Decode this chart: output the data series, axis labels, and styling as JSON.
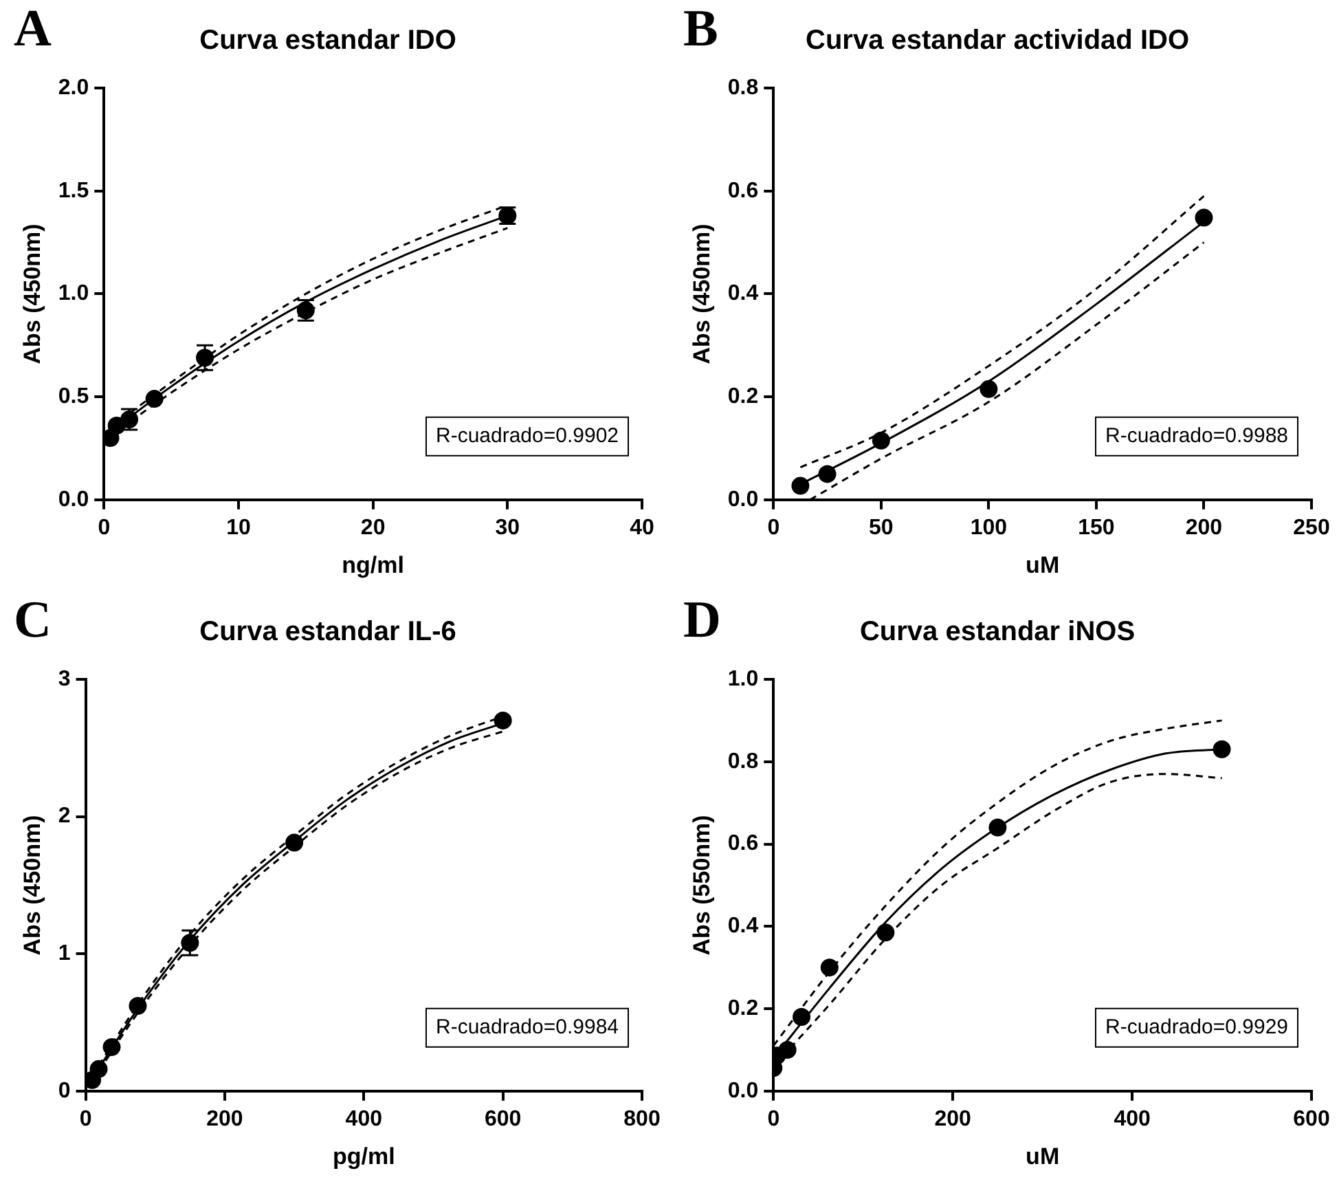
{
  "chart_data": [
    {
      "type": "scatter",
      "title": "Curva estandar IDO",
      "xlabel": "ng/ml",
      "ylabel": "Abs (450nm)",
      "annotations": [
        "A",
        "R-cuadrado=0.9902"
      ],
      "grid": false,
      "legend": false,
      "xlim": [
        0,
        40
      ],
      "xticks": [
        0,
        10,
        20,
        30,
        40
      ],
      "ylim": [
        0,
        2
      ],
      "yticks": [
        {
          "value": 0,
          "label": "0.0"
        },
        {
          "value": 0.5,
          "label": "0.5"
        },
        {
          "value": 1,
          "label": "1.0"
        },
        {
          "value": 1.5,
          "label": "1.5"
        },
        {
          "value": 2,
          "label": "2.0"
        }
      ],
      "series": [
        {
          "type": "scatter",
          "marker": "circle",
          "color": "#000000",
          "x": [
            0.47,
            0.94,
            1.88,
            3.75,
            7.5,
            15,
            30
          ],
          "values": [
            0.3,
            0.36,
            0.39,
            0.49,
            0.69,
            0.92,
            1.38
          ],
          "errors": [
            null,
            null,
            0.05,
            null,
            0.06,
            0.05,
            0.04
          ]
        },
        {
          "type": "line",
          "color": "#000000",
          "line_style": "solid",
          "x": [
            0.47,
            5,
            10,
            15,
            20,
            25,
            30
          ],
          "values": [
            0.33,
            0.55,
            0.77,
            0.96,
            1.12,
            1.26,
            1.38
          ]
        },
        {
          "type": "line",
          "color": "#000000",
          "line_style": "dashed",
          "x": [
            0.47,
            5,
            10,
            15,
            20,
            25,
            30
          ],
          "values": [
            0.35,
            0.57,
            0.8,
            1.0,
            1.17,
            1.31,
            1.43
          ]
        },
        {
          "type": "line",
          "color": "#000000",
          "line_style": "dashed",
          "x": [
            0.47,
            5,
            10,
            15,
            20,
            25,
            30
          ],
          "values": [
            0.31,
            0.52,
            0.73,
            0.91,
            1.07,
            1.2,
            1.32
          ]
        }
      ]
    },
    {
      "type": "scatter",
      "title": "Curva estandar actividad IDO",
      "xlabel": "uM",
      "ylabel": "Abs (450nm)",
      "annotations": [
        "B",
        "R-cuadrado=0.9988"
      ],
      "grid": false,
      "legend": false,
      "xlim": [
        0,
        250
      ],
      "xticks": [
        0,
        50,
        100,
        150,
        200,
        250
      ],
      "ylim": [
        0,
        0.8
      ],
      "yticks": [
        {
          "value": 0,
          "label": "0.0"
        },
        {
          "value": 0.2,
          "label": "0.2"
        },
        {
          "value": 0.4,
          "label": "0.4"
        },
        {
          "value": 0.6,
          "label": "0.6"
        },
        {
          "value": 0.8,
          "label": "0.8"
        }
      ],
      "series": [
        {
          "type": "scatter",
          "marker": "circle",
          "color": "#000000",
          "x": [
            12.5,
            25,
            50,
            100,
            200
          ],
          "values": [
            0.027,
            0.05,
            0.115,
            0.215,
            0.548
          ]
        },
        {
          "type": "line",
          "color": "#000000",
          "line_style": "solid",
          "x": [
            12.5,
            50,
            100,
            150,
            200
          ],
          "values": [
            0.03,
            0.11,
            0.23,
            0.38,
            0.54
          ]
        },
        {
          "type": "line",
          "color": "#000000",
          "line_style": "dashed",
          "x": [
            12.5,
            50,
            100,
            150,
            200
          ],
          "values": [
            0.063,
            0.13,
            0.26,
            0.41,
            0.59
          ]
        },
        {
          "type": "line",
          "color": "#000000",
          "line_style": "dashed",
          "x": [
            17,
            50,
            100,
            150,
            200
          ],
          "values": [
            0.0,
            0.08,
            0.19,
            0.34,
            0.5
          ]
        }
      ]
    },
    {
      "type": "scatter",
      "title": "Curva estandar IL-6",
      "xlabel": "pg/ml",
      "ylabel": "Abs (450nm)",
      "annotations": [
        "C",
        "R-cuadrado=0.9984"
      ],
      "grid": false,
      "legend": false,
      "xlim": [
        0,
        800
      ],
      "xticks": [
        0,
        200,
        400,
        600,
        800
      ],
      "ylim": [
        0,
        3
      ],
      "yticks": [
        0,
        1,
        2,
        3
      ],
      "series": [
        {
          "type": "scatter",
          "marker": "circle",
          "color": "#000000",
          "x": [
            9.4,
            18.75,
            37.5,
            75,
            150,
            300,
            600
          ],
          "values": [
            0.08,
            0.16,
            0.32,
            0.62,
            1.08,
            1.81,
            2.7
          ],
          "errors": [
            null,
            null,
            null,
            null,
            0.09,
            null,
            null
          ]
        },
        {
          "type": "line",
          "color": "#000000",
          "line_style": "solid",
          "x": [
            9.4,
            75,
            150,
            225,
            300,
            375,
            450,
            525,
            600
          ],
          "values": [
            0.09,
            0.6,
            1.1,
            1.5,
            1.82,
            2.12,
            2.36,
            2.55,
            2.68
          ]
        },
        {
          "type": "line",
          "color": "#000000",
          "line_style": "dashed",
          "x": [
            9.4,
            75,
            150,
            225,
            300,
            375,
            450,
            525,
            600
          ],
          "values": [
            0.11,
            0.63,
            1.14,
            1.54,
            1.86,
            2.16,
            2.4,
            2.59,
            2.73
          ]
        },
        {
          "type": "line",
          "color": "#000000",
          "line_style": "dashed",
          "x": [
            9.4,
            75,
            150,
            225,
            300,
            375,
            450,
            525,
            600
          ],
          "values": [
            0.07,
            0.57,
            1.06,
            1.46,
            1.78,
            2.08,
            2.32,
            2.5,
            2.62
          ]
        }
      ]
    },
    {
      "type": "scatter",
      "title": "Curva estandar iNOS",
      "xlabel": "uM",
      "ylabel": "Abs (550nm)",
      "annotations": [
        "D",
        "R-cuadrado=0.9929"
      ],
      "grid": false,
      "legend": false,
      "xlim": [
        0,
        600
      ],
      "xticks": [
        0,
        200,
        400,
        600
      ],
      "ylim": [
        0,
        1
      ],
      "yticks": [
        {
          "value": 0,
          "label": "0.0"
        },
        {
          "value": 0.2,
          "label": "0.2"
        },
        {
          "value": 0.4,
          "label": "0.4"
        },
        {
          "value": 0.6,
          "label": "0.6"
        },
        {
          "value": 0.8,
          "label": "0.8"
        },
        {
          "value": 1,
          "label": "1.0"
        }
      ],
      "series": [
        {
          "type": "scatter",
          "marker": "circle",
          "color": "#000000",
          "x": [
            0,
            3.9,
            15.6,
            31.25,
            62.5,
            125,
            250,
            500
          ],
          "values": [
            0.056,
            0.086,
            0.1,
            0.18,
            0.3,
            0.385,
            0.64,
            0.83
          ]
        },
        {
          "type": "line",
          "color": "#000000",
          "line_style": "solid",
          "x": [
            0,
            62.5,
            125,
            187.5,
            250,
            312.5,
            375,
            437.5,
            500
          ],
          "values": [
            0.08,
            0.25,
            0.41,
            0.54,
            0.64,
            0.72,
            0.78,
            0.82,
            0.83
          ]
        },
        {
          "type": "line",
          "color": "#000000",
          "line_style": "dashed",
          "x": [
            0,
            62.5,
            125,
            187.5,
            250,
            312.5,
            375,
            437.5,
            500
          ],
          "values": [
            0.11,
            0.29,
            0.45,
            0.59,
            0.7,
            0.79,
            0.85,
            0.88,
            0.9
          ]
        },
        {
          "type": "line",
          "color": "#000000",
          "line_style": "dashed",
          "x": [
            0,
            62.5,
            125,
            187.5,
            250,
            312.5,
            375,
            437.5,
            500
          ],
          "values": [
            0.06,
            0.21,
            0.37,
            0.5,
            0.59,
            0.68,
            0.75,
            0.77,
            0.76
          ]
        }
      ]
    }
  ]
}
